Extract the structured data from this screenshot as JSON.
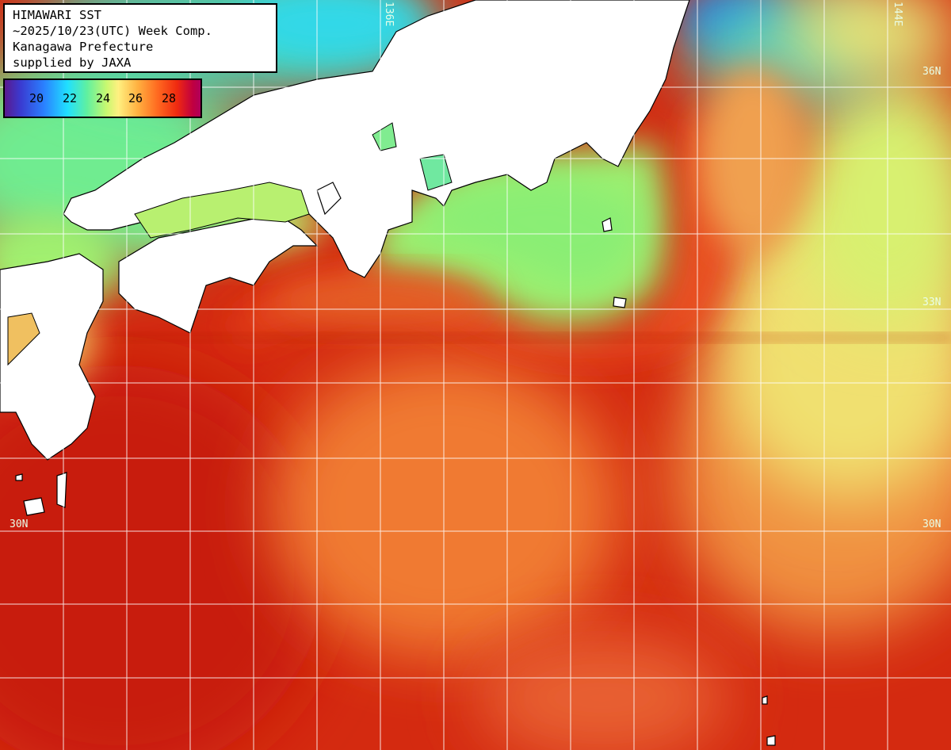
{
  "header": {
    "line1": "HIMAWARI SST",
    "line2": "~2025/10/23(UTC) Week Comp.",
    "line3": "Kanagawa Prefecture",
    "line4": "supplied by JAXA"
  },
  "colorbar": {
    "ticks": [
      "20",
      "22",
      "24",
      "26",
      "28"
    ]
  },
  "grid_labels": {
    "lon_136": "136E",
    "lon_144": "144E",
    "lat_36_right": "36N",
    "lat_33_right": "33N",
    "lat_30_left": "30N",
    "lat_30_right": "30N"
  },
  "colors": {
    "land": "#ffffff",
    "coast": "#000000",
    "grid": "#ffffff",
    "warm": "#d42a10",
    "cool": "#9cf070"
  }
}
